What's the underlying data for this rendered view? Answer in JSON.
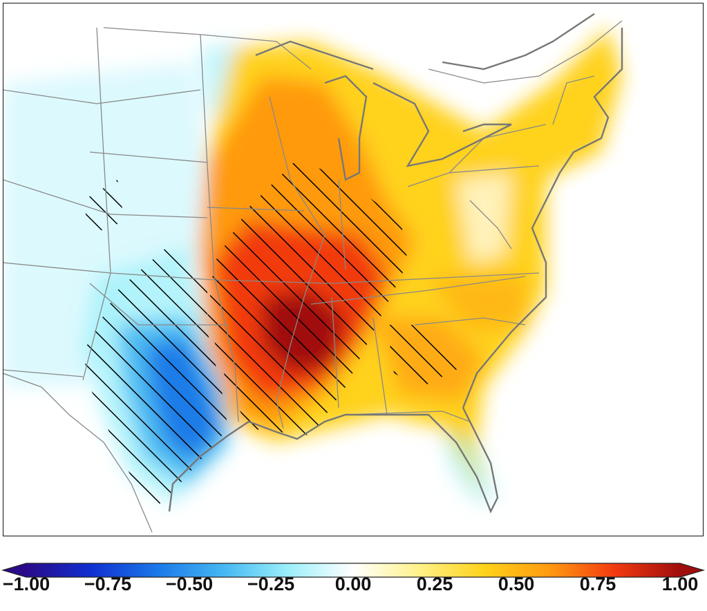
{
  "map": {
    "region": "eastern-united-states",
    "base_color": "#ffffff",
    "boundary_color": "#888888",
    "coast_color": "#777777",
    "hatch_color": "#000000",
    "hatch_meaning": "significant"
  },
  "colorbar": {
    "min": -1.0,
    "max": 1.0,
    "extend": "both",
    "colors": [
      "#2a0a8a",
      "#1030d0",
      "#1a78e8",
      "#44b6f2",
      "#9beffa",
      "#ffffff",
      "#fff28a",
      "#ffd21a",
      "#ff9a10",
      "#f23a10",
      "#a00d0d"
    ],
    "ticks": [
      "−1.00",
      "−0.75",
      "−0.50",
      "−0.25",
      "0.00",
      "0.25",
      "0.50",
      "0.75",
      "1.00"
    ]
  }
}
